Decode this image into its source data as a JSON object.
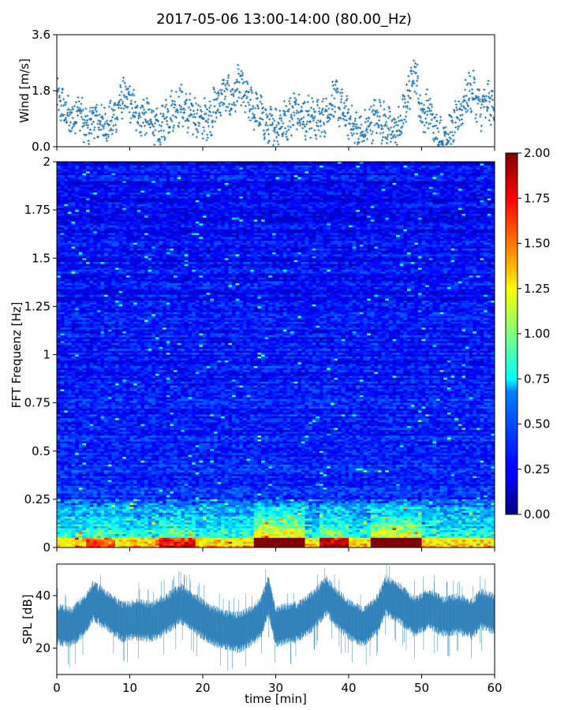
{
  "figure": {
    "title": "2017-05-06 13:00-14:00 (80.00_Hz)"
  },
  "chart_data": [
    {
      "type": "scatter",
      "name": "wind",
      "ylabel": "Wind [m/s]",
      "xlim": [
        0,
        60
      ],
      "ylim": [
        0,
        3.6
      ],
      "yticks": [
        "0.0",
        "1.8",
        "3.6"
      ],
      "color": "#1f77b4",
      "marker": "+",
      "note_series_envelope": {
        "x": [
          0,
          1,
          2,
          3,
          4,
          5,
          6,
          7,
          8,
          9,
          10,
          11,
          12,
          13,
          14,
          15,
          16,
          17,
          18,
          19,
          20,
          21,
          22,
          23,
          24,
          25,
          26,
          27,
          28,
          29,
          30,
          31,
          32,
          33,
          34,
          35,
          36,
          37,
          38,
          39,
          40,
          41,
          42,
          43,
          44,
          45,
          46,
          47,
          48,
          49,
          50,
          51,
          52,
          53,
          54,
          55,
          56,
          57,
          58,
          59,
          60
        ],
        "y": [
          1.5,
          1.2,
          0.8,
          1.3,
          0.5,
          0.9,
          0.8,
          0.7,
          1.0,
          1.6,
          1.4,
          1.0,
          1.0,
          0.8,
          0.4,
          1.0,
          1.2,
          1.4,
          1.0,
          1.0,
          0.8,
          1.0,
          1.4,
          1.7,
          1.5,
          2.0,
          1.5,
          1.2,
          1.0,
          0.6,
          0.7,
          0.8,
          1.0,
          1.3,
          0.9,
          1.0,
          0.8,
          1.1,
          1.6,
          1.2,
          0.9,
          0.5,
          0.4,
          0.8,
          1.0,
          0.7,
          0.5,
          0.6,
          1.5,
          2.6,
          1.0,
          1.2,
          0.4,
          0.3,
          0.5,
          0.9,
          1.6,
          1.8,
          1.2,
          1.4,
          1.3
        ]
      }
    },
    {
      "type": "heatmap",
      "name": "spectrogram",
      "ylabel": "FFT Frequenz [Hz]",
      "xlim": [
        0,
        60
      ],
      "ylim": [
        0,
        2
      ],
      "yticks": [
        "0",
        "0.25",
        "0.5",
        "0.75",
        "1",
        "1.25",
        "1.5",
        "1.75",
        "2"
      ],
      "colormap": "jet",
      "colorbar": {
        "vmin": 0.0,
        "vmax": 2.0,
        "ticks": [
          "0.00",
          "0.25",
          "0.50",
          "0.75",
          "1.00",
          "1.25",
          "1.50",
          "1.75",
          "2.00"
        ]
      },
      "typical_levels": {
        "background": 0.25,
        "high_freq_near_2hz": 0.2,
        "low_freq_band_0_to_0.25hz": 0.8,
        "peak_near_0hz_around_28_to_33min": 2.0,
        "peak_near_0hz_around_44_to_49min": 1.9
      }
    },
    {
      "type": "line",
      "name": "spl",
      "ylabel": "SPL [dB]",
      "xlabel": "time [min]",
      "xlim": [
        0,
        60
      ],
      "ylim": [
        10,
        52
      ],
      "yticks": [
        "20",
        "40"
      ],
      "xticks": [
        "0",
        "10",
        "20",
        "30",
        "40",
        "50",
        "60"
      ],
      "color": "#1f77b4",
      "mean_track": {
        "x": [
          0,
          2,
          4,
          5,
          7,
          9,
          11,
          13,
          15,
          17,
          19,
          21,
          23,
          25,
          27,
          28,
          29,
          30,
          31,
          33,
          35,
          37,
          38,
          40,
          42,
          44,
          45,
          47,
          49,
          51,
          53,
          55,
          57,
          58,
          60
        ],
        "y": [
          29,
          28,
          33,
          38,
          34,
          30,
          31,
          30,
          33,
          37,
          33,
          29,
          27,
          26,
          29,
          32,
          40,
          28,
          29,
          30,
          34,
          40,
          36,
          31,
          28,
          33,
          40,
          37,
          32,
          35,
          32,
          33,
          31,
          35,
          33
        ]
      }
    }
  ]
}
